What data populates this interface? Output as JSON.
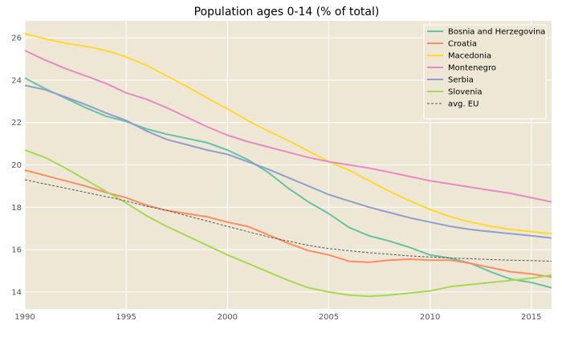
{
  "chart_data": {
    "type": "line",
    "title": "Population ages 0-14 (% of total)",
    "xlabel": "",
    "ylabel": "",
    "xlim": [
      1990,
      2016
    ],
    "ylim": [
      13.2,
      26.8
    ],
    "xticks": [
      1990,
      1995,
      2000,
      2005,
      2010,
      2015
    ],
    "yticks": [
      14,
      16,
      18,
      20,
      22,
      24,
      26
    ],
    "grid": true,
    "legend_position": "top-right",
    "plot_background": "#efe7d6",
    "x": [
      1990,
      1991,
      1992,
      1993,
      1994,
      1995,
      1996,
      1997,
      1998,
      1999,
      2000,
      2001,
      2002,
      2003,
      2004,
      2005,
      2006,
      2007,
      2008,
      2009,
      2010,
      2011,
      2012,
      2013,
      2014,
      2015,
      2016
    ],
    "series": [
      {
        "name": "Bosnia and Herzegovina",
        "color": "#66c2a5",
        "dashed": false,
        "values": [
          24.1,
          23.6,
          23.15,
          22.7,
          22.3,
          22.05,
          21.7,
          21.45,
          21.25,
          21.05,
          20.7,
          20.25,
          19.65,
          18.9,
          18.25,
          17.7,
          17.05,
          16.65,
          16.4,
          16.1,
          15.75,
          15.6,
          15.35,
          14.95,
          14.6,
          14.45,
          14.2
        ]
      },
      {
        "name": "Croatia",
        "color": "#fc8d62",
        "dashed": false,
        "values": [
          19.75,
          19.5,
          19.25,
          19.0,
          18.7,
          18.45,
          18.1,
          17.85,
          17.7,
          17.55,
          17.3,
          17.1,
          16.7,
          16.3,
          15.95,
          15.75,
          15.45,
          15.4,
          15.5,
          15.55,
          15.5,
          15.5,
          15.35,
          15.15,
          14.95,
          14.85,
          14.7
        ]
      },
      {
        "name": "Macedonia",
        "color": "#ffd92f",
        "dashed": false,
        "values": [
          26.2,
          25.95,
          25.75,
          25.6,
          25.4,
          25.1,
          24.7,
          24.2,
          23.7,
          23.15,
          22.65,
          22.1,
          21.6,
          21.15,
          20.65,
          20.15,
          19.75,
          19.25,
          18.75,
          18.3,
          17.9,
          17.55,
          17.3,
          17.1,
          16.95,
          16.85,
          16.75
        ]
      },
      {
        "name": "Montenegro",
        "color": "#e78ac3",
        "dashed": false,
        "values": [
          25.4,
          24.95,
          24.55,
          24.2,
          23.85,
          23.4,
          23.1,
          22.7,
          22.25,
          21.8,
          21.4,
          21.1,
          20.85,
          20.6,
          20.35,
          20.15,
          20.0,
          19.85,
          19.65,
          19.45,
          19.25,
          19.1,
          18.95,
          18.8,
          18.65,
          18.45,
          18.25
        ]
      },
      {
        "name": "Serbia",
        "color": "#8da0cb",
        "dashed": false,
        "values": [
          23.75,
          23.55,
          23.2,
          22.85,
          22.45,
          22.1,
          21.6,
          21.2,
          20.95,
          20.7,
          20.5,
          20.15,
          19.8,
          19.4,
          19.0,
          18.6,
          18.3,
          18.0,
          17.75,
          17.5,
          17.3,
          17.1,
          16.95,
          16.85,
          16.75,
          16.65,
          16.55
        ]
      },
      {
        "name": "Slovenia",
        "color": "#a6d854",
        "dashed": false,
        "values": [
          20.7,
          20.35,
          19.85,
          19.3,
          18.75,
          18.2,
          17.6,
          17.1,
          16.65,
          16.2,
          15.75,
          15.35,
          14.95,
          14.55,
          14.2,
          14.0,
          13.85,
          13.8,
          13.85,
          13.95,
          14.05,
          14.25,
          14.35,
          14.45,
          14.55,
          14.65,
          14.8
        ]
      },
      {
        "name": "avg. EU",
        "color": "#555555",
        "dashed": true,
        "values": [
          19.3,
          19.1,
          18.9,
          18.7,
          18.5,
          18.3,
          18.05,
          17.85,
          17.6,
          17.35,
          17.1,
          16.85,
          16.6,
          16.4,
          16.2,
          16.05,
          15.95,
          15.85,
          15.78,
          15.7,
          15.65,
          15.6,
          15.57,
          15.53,
          15.5,
          15.48,
          15.45
        ]
      }
    ]
  }
}
